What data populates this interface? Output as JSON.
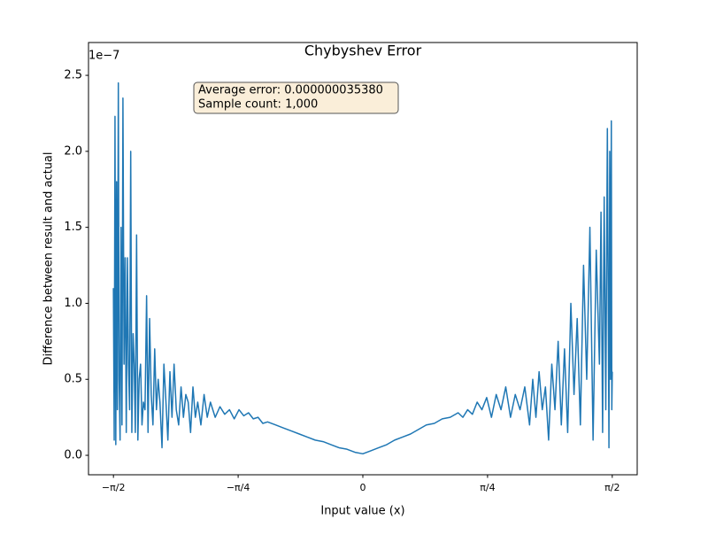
{
  "chart_data": {
    "type": "line",
    "title": "Chybyshev Error",
    "xlabel": "Input value (x)",
    "ylabel": "Difference between result and actual",
    "y_offset_label": "1e−7",
    "annotation_lines": [
      "Average error: 0.000000035380",
      "Sample count: 1,000"
    ],
    "xlim": [
      -1.7279,
      1.7279
    ],
    "ylim": [
      -0.128,
      2.716
    ],
    "xticks": [
      {
        "value": -1.5708,
        "label": "−π/2"
      },
      {
        "value": -0.7854,
        "label": "−π/4"
      },
      0,
      {
        "value": 0.7854,
        "label": "π/4"
      },
      {
        "value": 1.5708,
        "label": "π/2"
      }
    ],
    "yticks": [
      {
        "value": 0,
        "label": "0.0"
      },
      {
        "value": 0.5,
        "label": "0.5"
      },
      {
        "value": 1,
        "label": "1.0"
      },
      {
        "value": 1.5,
        "label": "1.5"
      },
      {
        "value": 2,
        "label": "2.0"
      },
      {
        "value": 2.5,
        "label": "2.5"
      }
    ],
    "series": [
      {
        "color": "#1f77b4",
        "x": [
          -1.571,
          -1.566,
          -1.561,
          -1.556,
          -1.551,
          -1.546,
          -1.54,
          -1.535,
          -1.529,
          -1.523,
          -1.517,
          -1.511,
          -1.504,
          -1.497,
          -1.49,
          -1.483,
          -1.476,
          -1.469,
          -1.462,
          -1.455,
          -1.447,
          -1.44,
          -1.433,
          -1.425,
          -1.417,
          -1.409,
          -1.4,
          -1.391,
          -1.382,
          -1.372,
          -1.362,
          -1.353,
          -1.343,
          -1.333,
          -1.322,
          -1.311,
          -1.3,
          -1.289,
          -1.278,
          -1.265,
          -1.253,
          -1.24,
          -1.228,
          -1.215,
          -1.202,
          -1.189,
          -1.175,
          -1.16,
          -1.145,
          -1.13,
          -1.115,
          -1.1,
          -1.085,
          -1.07,
          -1.055,
          -1.04,
          -1.02,
          -1.0,
          -0.98,
          -0.96,
          -0.93,
          -0.9,
          -0.87,
          -0.84,
          -0.81,
          -0.78,
          -0.75,
          -0.72,
          -0.69,
          -0.66,
          -0.63,
          -0.6,
          -0.55,
          -0.5,
          -0.45,
          -0.4,
          -0.35,
          -0.3,
          -0.25,
          -0.2,
          -0.15,
          -0.1,
          -0.05,
          0,
          0.05,
          0.1,
          0.15,
          0.2,
          0.25,
          0.3,
          0.35,
          0.4,
          0.45,
          0.5,
          0.55,
          0.6,
          0.63,
          0.66,
          0.69,
          0.72,
          0.75,
          0.78,
          0.81,
          0.84,
          0.87,
          0.9,
          0.93,
          0.96,
          0.99,
          1.02,
          1.05,
          1.07,
          1.09,
          1.11,
          1.13,
          1.15,
          1.17,
          1.19,
          1.21,
          1.23,
          1.25,
          1.27,
          1.29,
          1.31,
          1.33,
          1.35,
          1.37,
          1.39,
          1.41,
          1.43,
          1.45,
          1.47,
          1.49,
          1.5,
          1.51,
          1.52,
          1.53,
          1.54,
          1.55,
          1.555,
          1.56,
          1.565,
          1.568,
          1.571
        ],
        "values": [
          1.1,
          0.1,
          2.23,
          0.07,
          1.8,
          0.3,
          2.45,
          0.5,
          0.1,
          1.5,
          0.2,
          2.35,
          0.6,
          1.3,
          0.15,
          1.3,
          0.6,
          0.3,
          2.0,
          0.15,
          0.8,
          0.6,
          0.15,
          1.45,
          0.1,
          0.5,
          0.6,
          0.2,
          0.35,
          0.3,
          1.05,
          0.15,
          0.9,
          0.4,
          0.2,
          0.7,
          0.3,
          0.5,
          0.35,
          0.05,
          0.6,
          0.35,
          0.1,
          0.55,
          0.25,
          0.6,
          0.3,
          0.2,
          0.45,
          0.25,
          0.4,
          0.35,
          0.15,
          0.45,
          0.25,
          0.35,
          0.2,
          0.4,
          0.25,
          0.35,
          0.25,
          0.32,
          0.27,
          0.3,
          0.24,
          0.3,
          0.26,
          0.28,
          0.24,
          0.25,
          0.21,
          0.22,
          0.2,
          0.18,
          0.16,
          0.14,
          0.12,
          0.1,
          0.09,
          0.07,
          0.05,
          0.04,
          0.02,
          0.01,
          0.03,
          0.05,
          0.07,
          0.1,
          0.12,
          0.14,
          0.17,
          0.2,
          0.21,
          0.24,
          0.25,
          0.28,
          0.25,
          0.3,
          0.27,
          0.35,
          0.3,
          0.38,
          0.25,
          0.4,
          0.3,
          0.45,
          0.25,
          0.4,
          0.3,
          0.45,
          0.2,
          0.5,
          0.25,
          0.55,
          0.3,
          0.45,
          0.1,
          0.6,
          0.3,
          0.75,
          0.2,
          0.7,
          0.15,
          1.0,
          0.4,
          0.9,
          0.2,
          1.25,
          0.5,
          1.5,
          0.1,
          1.35,
          0.6,
          1.6,
          0.15,
          1.7,
          0.3,
          2.15,
          0.05,
          2.0,
          0.5,
          2.2,
          0.3,
          0.55
        ]
      }
    ]
  }
}
